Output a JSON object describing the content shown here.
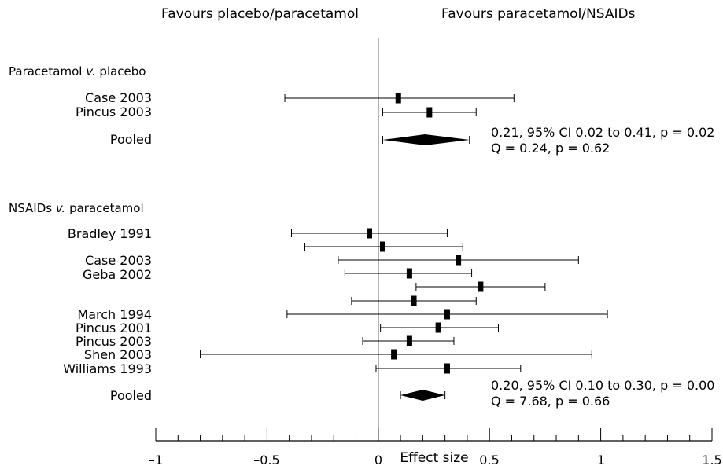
{
  "headers": {
    "left": "Favours placebo/paracetamol",
    "right": "Favours paracetamol/NSAIDs"
  },
  "chart_data": {
    "type": "forest",
    "xlabel": "Effect size",
    "xlim": [
      -1,
      1.5
    ],
    "xticks": [
      "–1",
      "–0.5",
      "0",
      "0.5",
      "1",
      "1.5"
    ],
    "groups": [
      {
        "label_main": "Paracetamol",
        "label_ital": "v.",
        "label_rest": "placebo",
        "studies": [
          {
            "name": "Case 2003",
            "est": 0.09,
            "lo": -0.42,
            "hi": 0.61
          },
          {
            "name": "Pincus 2003",
            "est": 0.23,
            "lo": 0.02,
            "hi": 0.44
          }
        ],
        "pooled": {
          "name": "Pooled",
          "est": 0.21,
          "lo": 0.02,
          "hi": 0.41
        },
        "stats_line1": "0.21, 95% CI 0.02 to 0.41, p = 0.02",
        "stats_line2": "Q = 0.24, p = 0.62"
      },
      {
        "label_main": "NSAIDs",
        "label_ital": "v.",
        "label_rest": "paracetamol",
        "studies": [
          {
            "name": "Bradley 1991",
            "est": -0.04,
            "lo": -0.39,
            "hi": 0.31
          },
          {
            "name": "",
            "est": 0.02,
            "lo": -0.33,
            "hi": 0.38
          },
          {
            "name": "Case 2003",
            "est": 0.36,
            "lo": -0.18,
            "hi": 0.9
          },
          {
            "name": "Geba 2002",
            "est": 0.14,
            "lo": -0.15,
            "hi": 0.42
          },
          {
            "name": "",
            "est": 0.46,
            "lo": 0.17,
            "hi": 0.75
          },
          {
            "name": "",
            "est": 0.16,
            "lo": -0.12,
            "hi": 0.44
          },
          {
            "name": "March 1994",
            "est": 0.31,
            "lo": -0.41,
            "hi": 1.03
          },
          {
            "name": "Pincus 2001",
            "est": 0.27,
            "lo": 0.01,
            "hi": 0.54
          },
          {
            "name": "Pincus 2003",
            "est": 0.14,
            "lo": -0.07,
            "hi": 0.34
          },
          {
            "name": "Shen 2003",
            "est": 0.07,
            "lo": -0.8,
            "hi": 0.96
          },
          {
            "name": "Williams 1993",
            "est": 0.31,
            "lo": -0.01,
            "hi": 0.64
          }
        ],
        "pooled": {
          "name": "Pooled",
          "est": 0.2,
          "lo": 0.1,
          "hi": 0.3
        },
        "stats_line1": "0.20, 95% CI 0.10 to 0.30, p = 0.00",
        "stats_line2": "Q = 7.68, p = 0.66"
      }
    ]
  }
}
